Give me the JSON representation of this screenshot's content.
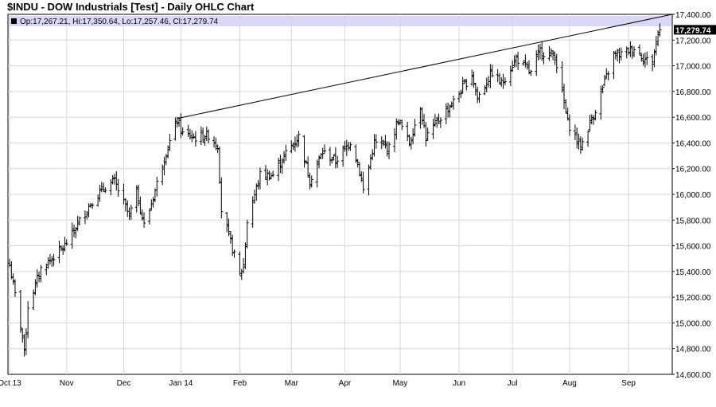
{
  "colors": {
    "background": "#ffffff",
    "grid": "#d6d6d6",
    "bars": "#000000",
    "header_band": "#d9d9f7",
    "last_price_box": "#000000",
    "last_price_text": "#ffffff"
  },
  "chart_data": {
    "type": "ohlc",
    "title": "$INDU - DOW Industrials [Test] - Daily OHLC Chart",
    "ohlc_readout": "Op:17,267.21, Hi:17,350.64, Lo:17,257.46, Cl:17,279.74",
    "last_price_label": "17,279.74",
    "ylim": [
      14600,
      17400
    ],
    "x_range": [
      "2013-10-01",
      "2014-09-24"
    ],
    "y_ticks": [
      14600,
      14800,
      15000,
      15200,
      15400,
      15600,
      15800,
      16000,
      16200,
      16400,
      16600,
      16800,
      17000,
      17200,
      17400
    ],
    "y_tick_labels": [
      "14,600.00",
      "14,800.00",
      "15,000.00",
      "15,200.00",
      "15,400.00",
      "15,600.00",
      "15,800.00",
      "16,000.00",
      "16,200.00",
      "16,400.00",
      "16,600.00",
      "16,800.00",
      "17,000.00",
      "17,200.00",
      "17,400.00"
    ],
    "x_ticks": [
      "2013-10-01",
      "2013-11-01",
      "2013-12-02",
      "2014-01-02",
      "2014-02-03",
      "2014-03-03",
      "2014-04-01",
      "2014-05-01",
      "2014-06-02",
      "2014-07-01",
      "2014-08-01",
      "2014-09-02"
    ],
    "x_tick_labels": [
      "Oct 13",
      "Nov",
      "Dec",
      "Jan 14",
      "Feb",
      "Mar",
      "Apr",
      "May",
      "Jun",
      "Jul",
      "Aug",
      "Sep"
    ],
    "grid": true,
    "trendline": {
      "from": {
        "x": "2013-12-31",
        "y": 16590
      },
      "to": {
        "x": "2014-09-24",
        "y": 17400
      }
    },
    "waypoints": [
      [
        "2013-10-01",
        15450
      ],
      [
        "2013-10-08",
        14900
      ],
      [
        "2013-10-09",
        14760
      ],
      [
        "2013-10-11",
        15130
      ],
      [
        "2013-10-18",
        15420
      ],
      [
        "2013-10-31",
        15600
      ],
      [
        "2013-11-07",
        15770
      ],
      [
        "2013-11-15",
        15950
      ],
      [
        "2013-11-22",
        16060
      ],
      [
        "2013-11-27",
        16100
      ],
      [
        "2013-12-05",
        15830
      ],
      [
        "2013-12-09",
        16020
      ],
      [
        "2013-12-13",
        15760
      ],
      [
        "2013-12-16",
        15880
      ],
      [
        "2013-12-23",
        16240
      ],
      [
        "2013-12-31",
        16580
      ],
      [
        "2014-01-03",
        16470
      ],
      [
        "2014-01-10",
        16440
      ],
      [
        "2014-01-17",
        16460
      ],
      [
        "2014-01-22",
        16380
      ],
      [
        "2014-01-24",
        15880
      ],
      [
        "2014-02-03",
        15370
      ],
      [
        "2014-02-05",
        15450
      ],
      [
        "2014-02-07",
        15790
      ],
      [
        "2014-02-14",
        16150
      ],
      [
        "2014-02-21",
        16150
      ],
      [
        "2014-02-28",
        16320
      ],
      [
        "2014-03-07",
        16450
      ],
      [
        "2014-03-13",
        16110
      ],
      [
        "2014-03-20",
        16330
      ],
      [
        "2014-03-27",
        16260
      ],
      [
        "2014-04-04",
        16410
      ],
      [
        "2014-04-08",
        16250
      ],
      [
        "2014-04-11",
        16030
      ],
      [
        "2014-04-17",
        16400
      ],
      [
        "2014-04-25",
        16360
      ],
      [
        "2014-04-30",
        16580
      ],
      [
        "2014-05-06",
        16400
      ],
      [
        "2014-05-12",
        16690
      ],
      [
        "2014-05-15",
        16440
      ],
      [
        "2014-05-23",
        16600
      ],
      [
        "2014-05-30",
        16720
      ],
      [
        "2014-06-09",
        16940
      ],
      [
        "2014-06-12",
        16750
      ],
      [
        "2014-06-20",
        16950
      ],
      [
        "2014-06-25",
        16860
      ],
      [
        "2014-07-03",
        17060
      ],
      [
        "2014-07-11",
        16940
      ],
      [
        "2014-07-16",
        17120
      ],
      [
        "2014-07-18",
        17100
      ],
      [
        "2014-07-24",
        17080
      ],
      [
        "2014-07-31",
        16560
      ],
      [
        "2014-08-07",
        16370
      ],
      [
        "2014-08-15",
        16660
      ],
      [
        "2014-08-25",
        17080
      ],
      [
        "2014-08-29",
        17090
      ],
      [
        "2014-09-05",
        17140
      ],
      [
        "2014-09-11",
        17050
      ],
      [
        "2014-09-15",
        17030
      ],
      [
        "2014-09-18",
        17260
      ],
      [
        "2014-09-19",
        17279.74
      ]
    ]
  }
}
